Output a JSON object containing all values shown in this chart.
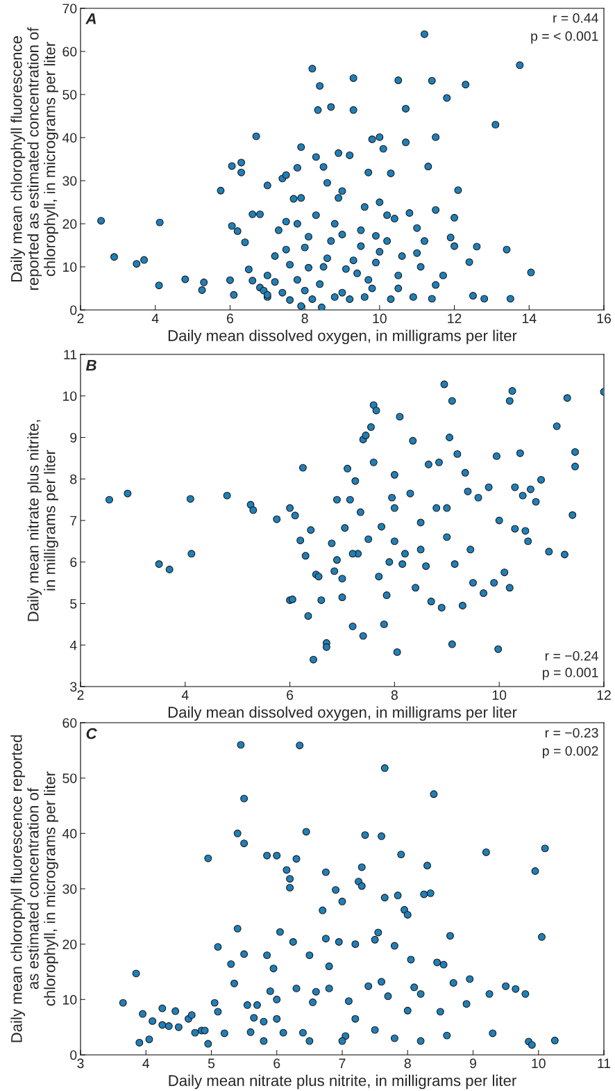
{
  "chart_data": [
    {
      "type": "scatter",
      "xlabel": "Daily mean dissolved oxygen, in milligrams per liter",
      "ylabel": "Daily mean chlorophyll fluorescence\nreported as estimated concentration of\nchlorophyll, in micrograms per liter",
      "annotations": [
        "A",
        "r = 0.44",
        "p = < 0.001"
      ],
      "xlim": [
        2,
        16
      ],
      "xticks": [
        2,
        4,
        6,
        8,
        10,
        12,
        14,
        16
      ],
      "ylim": [
        0,
        70
      ],
      "yticks": [
        0,
        10,
        20,
        30,
        40,
        50,
        60,
        70
      ],
      "grid": false,
      "marker": "circle",
      "series": [
        {
          "color": "#1f7fb8",
          "x": [
            2.55,
            2.9,
            3.5,
            3.7,
            4.1,
            4.12,
            4.8,
            5.25,
            5.3,
            5.75,
            6.0,
            6.05,
            6.05,
            6.1,
            6.2,
            6.3,
            6.3,
            6.4,
            6.5,
            6.6,
            6.7,
            6.8,
            6.6,
            6.8,
            7.0,
            7.0,
            7.2,
            7.3,
            7.4,
            7.5,
            7.5,
            7.6,
            7.7,
            7.8,
            7.8,
            7.9,
            7.9,
            8.0,
            8.1,
            8.2,
            8.3,
            8.35,
            8.4,
            8.5,
            8.45,
            8.6,
            8.7,
            8.8,
            8.9,
            9.0,
            9.2,
            9.3,
            9.3,
            9.1,
            9.5,
            9.6,
            9.7,
            9.8,
            9.9,
            10.0,
            10.0,
            10.1,
            10.2,
            10.3,
            10.4,
            10.5,
            10.7,
            10.7,
            10.8,
            11.0,
            11.2,
            11.3,
            11.4,
            11.5,
            11.5,
            11.8,
            11.9,
            12.0,
            12.1,
            12.3,
            12.4,
            12.5,
            12.6,
            12.8,
            13.1,
            13.4,
            13.5,
            13.75,
            14.05,
            11.5,
            11.4,
            11.1,
            10.9,
            10.5,
            10.3,
            10.0,
            9.8,
            9.6,
            9.4,
            9.2,
            9.0,
            8.8,
            8.6,
            8.4,
            8.2,
            8.0,
            7.8,
            7.6,
            7.4,
            7.2,
            7.0,
            6.9,
            7.5,
            8.3,
            8.7,
            9.5,
            10.2,
            9.9,
            8.5,
            9.7,
            10.6,
            11.0,
            11.7,
            12.0,
            7.0,
            8.9,
            9.3,
            7.9,
            10.5,
            9.0,
            8.1,
            11.2
          ],
          "values": [
            20.7,
            12.3,
            10.7,
            11.6,
            5.7,
            20.3,
            7.1,
            4.6,
            6.4,
            27.7,
            6.9,
            19.5,
            33.4,
            3.5,
            18.3,
            34.2,
            31.9,
            15.7,
            9.4,
            22.2,
            40.3,
            22.2,
            6.8,
            5.2,
            28.9,
            3.0,
            12.5,
            18.5,
            30.5,
            31.3,
            20.5,
            2.3,
            25.8,
            20.0,
            33.0,
            37.8,
            0.9,
            14.5,
            9.8,
            56.0,
            35.5,
            46.4,
            52.0,
            33.2,
            0.6,
            29.5,
            47.1,
            20.0,
            36.4,
            27.6,
            35.9,
            53.8,
            46.4,
            9.5,
            14.8,
            23.9,
            31.9,
            39.6,
            17.2,
            40.1,
            25.0,
            37.4,
            22.0,
            31.7,
            21.2,
            53.3,
            38.9,
            46.7,
            22.5,
            13.2,
            64.0,
            33.3,
            53.2,
            40.1,
            23.2,
            49.2,
            16.8,
            21.4,
            27.8,
            52.3,
            11.1,
            3.3,
            14.7,
            2.6,
            43.0,
            14.0,
            2.6,
            56.8,
            8.7,
            5.8,
            2.6,
            10.0,
            3.0,
            8.0,
            2.5,
            13.5,
            5.0,
            3.0,
            8.5,
            2.5,
            17.5,
            3.0,
            12.0,
            6.0,
            2.5,
            4.5,
            7.0,
            10.5,
            4.0,
            6.5,
            8.0,
            4.5,
            14.0,
            22.0,
            16.0,
            18.5,
            16.0,
            11.0,
            10.0,
            7.0,
            12.5,
            19.0,
            8.0,
            14.8,
            3.5,
            26.0,
            11.5,
            26.0,
            5.0,
            4.0,
            17.0,
            16.0
          ]
        }
      ]
    },
    {
      "type": "scatter",
      "xlabel": "Daily mean dissolved oxygen, in milligrams per liter",
      "ylabel": "Daily mean nitrate plus nitrite,\nin milligrams per liter",
      "annotations": [
        "B",
        "r = −0.24",
        "p = 0.001"
      ],
      "xlim": [
        2,
        12
      ],
      "xticks": [
        2,
        4,
        6,
        8,
        10,
        12
      ],
      "ylim": [
        3,
        11
      ],
      "yticks": [
        3,
        4,
        5,
        6,
        7,
        8,
        9,
        10,
        11
      ],
      "grid": false,
      "marker": "circle",
      "series": [
        {
          "color": "#1f7fb8",
          "x": [
            2.55,
            2.9,
            3.5,
            3.7,
            4.1,
            4.12,
            4.8,
            5.25,
            5.3,
            5.75,
            6.0,
            6.0,
            6.05,
            6.1,
            6.2,
            6.25,
            6.3,
            6.35,
            6.4,
            6.45,
            6.5,
            6.55,
            6.6,
            6.7,
            6.7,
            6.8,
            6.85,
            6.9,
            6.9,
            7.0,
            7.0,
            7.05,
            7.1,
            7.15,
            7.2,
            7.25,
            7.3,
            7.35,
            7.4,
            7.4,
            7.45,
            7.5,
            7.55,
            7.6,
            7.65,
            7.6,
            7.7,
            7.75,
            7.8,
            7.85,
            7.9,
            7.95,
            8.0,
            8.0,
            8.05,
            8.1,
            8.15,
            8.2,
            8.3,
            8.35,
            8.4,
            8.5,
            8.6,
            8.65,
            8.7,
            8.8,
            8.85,
            8.9,
            8.95,
            9.0,
            9.05,
            9.1,
            9.1,
            9.15,
            9.2,
            9.3,
            9.35,
            9.4,
            9.45,
            9.5,
            9.6,
            9.7,
            9.8,
            9.9,
            9.95,
            9.98,
            10.0,
            10.1,
            10.2,
            10.2,
            10.25,
            10.3,
            10.4,
            10.45,
            10.5,
            10.55,
            10.6,
            10.7,
            10.8,
            10.95,
            11.1,
            11.25,
            11.3,
            11.4,
            11.45,
            11.45,
            12.0,
            8.5,
            8.0,
            7.2,
            9.0,
            10.3
          ],
          "values": [
            7.5,
            7.65,
            5.95,
            5.82,
            7.52,
            6.2,
            7.6,
            7.38,
            7.25,
            7.03,
            7.3,
            5.08,
            5.1,
            7.12,
            6.52,
            8.27,
            6.15,
            4.7,
            6.77,
            3.65,
            5.7,
            5.65,
            5.08,
            4.05,
            3.95,
            6.45,
            5.78,
            7.5,
            6.05,
            5.6,
            5.15,
            6.82,
            8.25,
            7.5,
            4.45,
            7.95,
            6.2,
            7.2,
            4.22,
            8.95,
            9.05,
            6.55,
            9.25,
            9.78,
            9.65,
            8.4,
            5.65,
            6.85,
            4.5,
            5.2,
            6.0,
            7.55,
            8.1,
            6.5,
            3.83,
            9.5,
            5.95,
            6.2,
            7.65,
            8.92,
            5.38,
            6.95,
            5.9,
            8.35,
            5.05,
            7.3,
            8.4,
            4.9,
            10.28,
            6.6,
            9.0,
            4.02,
            9.88,
            5.95,
            8.6,
            4.95,
            8.15,
            7.7,
            6.3,
            5.5,
            7.55,
            5.25,
            7.8,
            5.5,
            8.55,
            3.9,
            7.0,
            5.75,
            5.38,
            9.88,
            10.12,
            7.8,
            8.62,
            7.6,
            6.75,
            6.5,
            7.75,
            7.45,
            7.98,
            6.25,
            9.27,
            6.18,
            9.95,
            7.13,
            8.65,
            8.3,
            10.1,
            6.3,
            7.3,
            6.2,
            7.3,
            6.8
          ]
        }
      ]
    },
    {
      "type": "scatter",
      "xlabel": "Daily mean nitrate plus nitrite, in milligrams per liter",
      "ylabel": "Daily mean chlorophyll fluorescence reported\nas estimated concentration of\nchlorophyll, in micrograms per liter",
      "annotations": [
        "C",
        "r = −0.23",
        "p = 0.002"
      ],
      "xlim": [
        3,
        11
      ],
      "xticks": [
        3,
        4,
        5,
        6,
        7,
        8,
        9,
        10,
        11
      ],
      "ylim": [
        0,
        60
      ],
      "yticks": [
        0,
        10,
        20,
        30,
        40,
        50,
        60
      ],
      "grid": false,
      "marker": "circle",
      "series": [
        {
          "color": "#1f7fb8",
          "x": [
            3.65,
            3.85,
            3.9,
            3.95,
            4.05,
            4.1,
            4.25,
            4.25,
            4.35,
            4.45,
            4.5,
            4.65,
            4.7,
            4.75,
            4.85,
            4.9,
            4.95,
            4.95,
            5.05,
            5.1,
            5.1,
            5.2,
            5.3,
            5.35,
            5.4,
            5.4,
            5.45,
            5.5,
            5.5,
            5.5,
            5.55,
            5.6,
            5.65,
            5.7,
            5.8,
            5.85,
            5.85,
            5.9,
            5.95,
            6.0,
            6.0,
            6.05,
            6.1,
            6.15,
            6.2,
            6.2,
            6.25,
            6.3,
            6.3,
            6.35,
            6.4,
            6.45,
            6.5,
            6.55,
            6.6,
            6.7,
            6.75,
            6.75,
            6.8,
            6.9,
            6.95,
            7.0,
            7.05,
            7.1,
            7.2,
            7.25,
            7.3,
            7.3,
            7.35,
            7.4,
            7.5,
            7.55,
            7.6,
            7.6,
            7.65,
            7.65,
            7.7,
            7.8,
            7.85,
            7.9,
            7.95,
            8.0,
            8.05,
            8.1,
            8.2,
            8.25,
            8.3,
            8.35,
            8.4,
            8.45,
            8.5,
            8.55,
            8.6,
            8.65,
            8.7,
            8.9,
            8.95,
            9.2,
            9.25,
            9.3,
            9.5,
            9.65,
            9.8,
            9.85,
            9.9,
            9.95,
            10.05,
            10.1,
            10.25,
            7.0,
            7.5,
            6.5,
            8.0,
            6.0,
            7.2,
            7.8,
            8.2,
            6.8,
            5.8
          ],
          "values": [
            9.4,
            14.7,
            2.2,
            7.4,
            2.8,
            6.1,
            8.4,
            5.4,
            5.2,
            7.9,
            5.0,
            6.5,
            7.2,
            4.0,
            4.4,
            4.4,
            2.0,
            35.5,
            9.4,
            19.5,
            7.8,
            3.9,
            16.4,
            12.9,
            40.0,
            22.8,
            56.0,
            46.3,
            38.2,
            18.2,
            9.0,
            4.1,
            6.7,
            9.0,
            2.5,
            36.0,
            18.0,
            11.5,
            15.6,
            36.0,
            10.0,
            22.2,
            4.0,
            33.4,
            30.2,
            31.8,
            20.4,
            35.4,
            12.0,
            55.9,
            4.0,
            40.3,
            18.0,
            9.5,
            11.4,
            26.1,
            33.0,
            21.0,
            16.0,
            29.8,
            20.4,
            27.7,
            3.4,
            9.7,
            20.0,
            31.3,
            33.9,
            30.5,
            39.7,
            12.4,
            20.8,
            22.1,
            39.5,
            13.2,
            51.8,
            28.4,
            10.6,
            19.7,
            28.8,
            36.2,
            26.2,
            25.3,
            17.2,
            12.2,
            2.5,
            29.0,
            34.2,
            29.2,
            47.1,
            16.7,
            7.8,
            16.3,
            3.5,
            21.5,
            13.0,
            9.2,
            13.7,
            36.6,
            11.0,
            3.9,
            12.4,
            11.9,
            11.0,
            2.4,
            1.8,
            33.2,
            21.3,
            37.3,
            2.6,
            2.5,
            4.5,
            2.5,
            8.0,
            6.5,
            6.5,
            3.0,
            11.0,
            12.0,
            6.0
          ]
        }
      ]
    }
  ]
}
